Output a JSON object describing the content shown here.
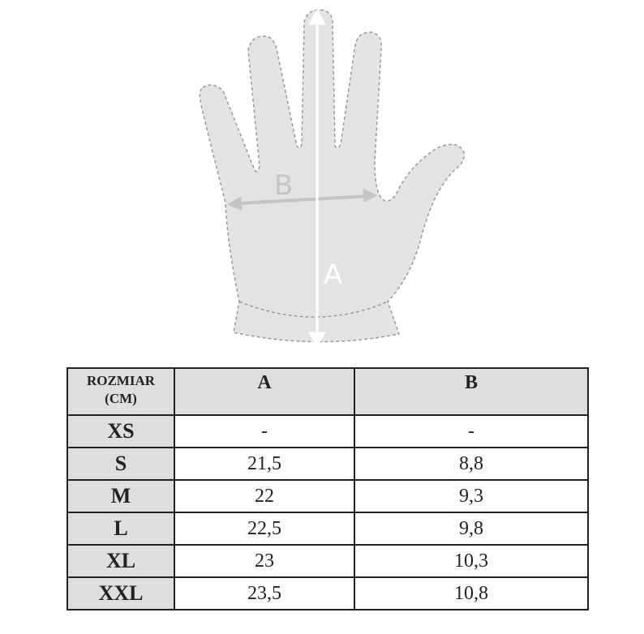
{
  "diagram": {
    "label_a": "A",
    "label_b": "B",
    "fill_color": "#e3e3e3",
    "outline_color": "#9a9a9a"
  },
  "table": {
    "header": {
      "size": "ROZMIAR",
      "unit": "(CM)",
      "a": "A",
      "b": "B"
    },
    "rows": [
      {
        "size": "XS",
        "a": "-",
        "b": "-"
      },
      {
        "size": "S",
        "a": "21,5",
        "b": "8,8"
      },
      {
        "size": "M",
        "a": "22",
        "b": "9,3"
      },
      {
        "size": "L",
        "a": "22,5",
        "b": "9,8"
      },
      {
        "size": "XL",
        "a": "23",
        "b": "10,3"
      },
      {
        "size": "XXL",
        "a": "23,5",
        "b": "10,8"
      }
    ]
  }
}
